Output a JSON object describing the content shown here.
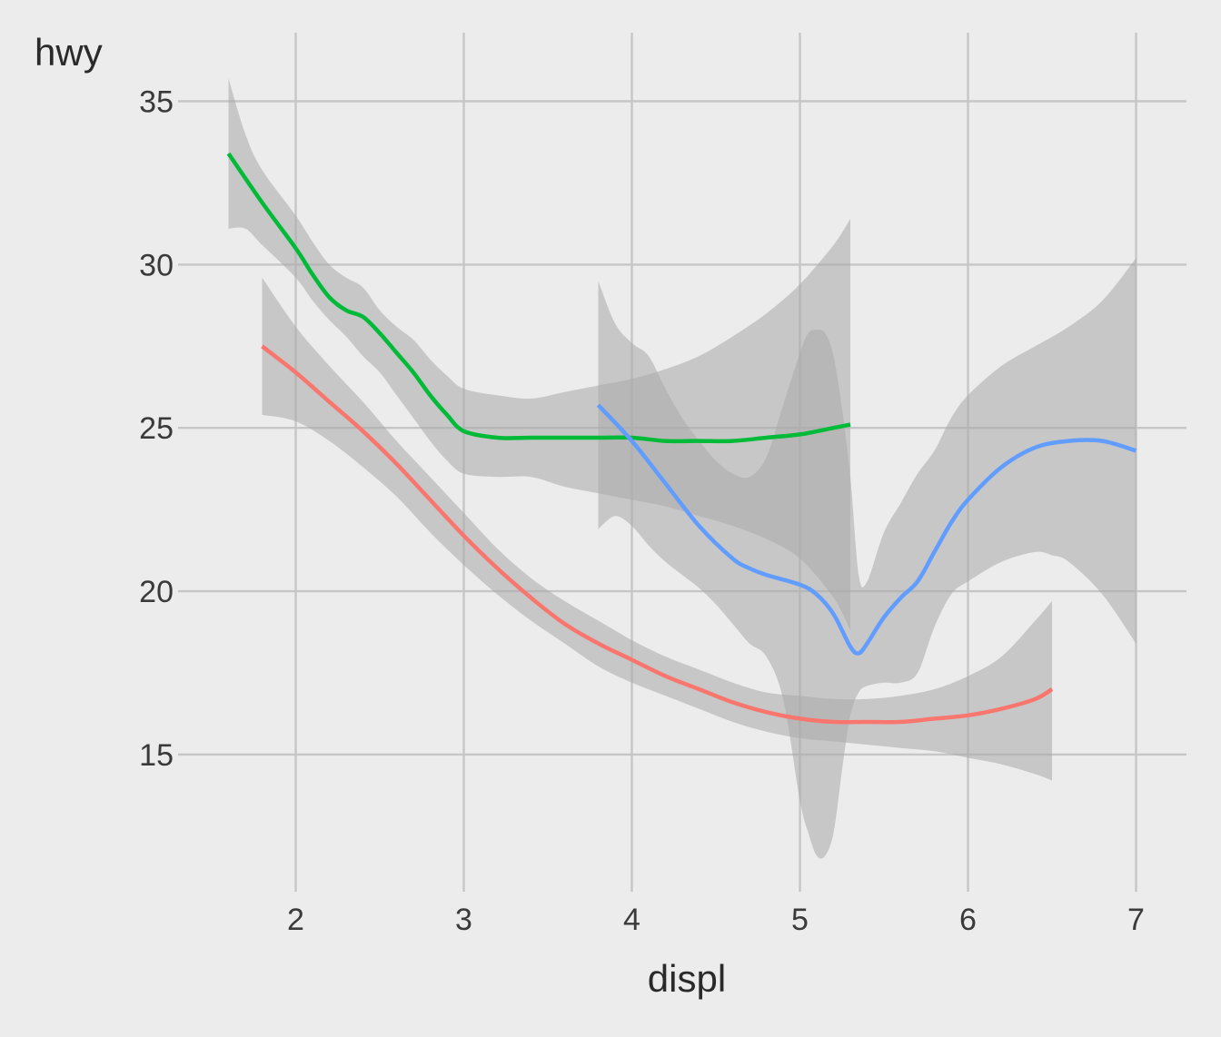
{
  "chart_data": {
    "type": "line",
    "xlabel": "displ",
    "ylabel": "hwy",
    "xlim": [
      1.3,
      7.3
    ],
    "ylim": [
      10.8,
      37.1
    ],
    "x_ticks": [
      2,
      3,
      4,
      5,
      6,
      7
    ],
    "y_ticks": [
      15,
      20,
      25,
      30,
      35
    ],
    "grid": true,
    "legend": "none",
    "series": [
      {
        "color": "#f8766d",
        "points": [
          [
            1.8,
            27.5
          ],
          [
            2.0,
            26.7
          ],
          [
            2.2,
            25.8
          ],
          [
            2.4,
            24.9
          ],
          [
            2.6,
            23.9
          ],
          [
            2.8,
            22.8
          ],
          [
            3.0,
            21.7
          ],
          [
            3.2,
            20.7
          ],
          [
            3.4,
            19.8
          ],
          [
            3.6,
            19.0
          ],
          [
            3.8,
            18.4
          ],
          [
            4.0,
            17.9
          ],
          [
            4.2,
            17.4
          ],
          [
            4.4,
            17.0
          ],
          [
            4.6,
            16.6
          ],
          [
            4.8,
            16.3
          ],
          [
            5.0,
            16.1
          ],
          [
            5.2,
            16.0
          ],
          [
            5.4,
            16.0
          ],
          [
            5.6,
            16.0
          ],
          [
            5.8,
            16.1
          ],
          [
            6.0,
            16.2
          ],
          [
            6.2,
            16.4
          ],
          [
            6.4,
            16.7
          ],
          [
            6.5,
            17.0
          ]
        ],
        "band_upper": [
          [
            1.8,
            29.6
          ],
          [
            2.0,
            28.1
          ],
          [
            2.2,
            26.9
          ],
          [
            2.4,
            25.8
          ],
          [
            2.6,
            24.6
          ],
          [
            2.8,
            23.5
          ],
          [
            3.0,
            22.4
          ],
          [
            3.2,
            21.3
          ],
          [
            3.4,
            20.4
          ],
          [
            3.6,
            19.7
          ],
          [
            3.8,
            19.1
          ],
          [
            4.0,
            18.5
          ],
          [
            4.2,
            18.0
          ],
          [
            4.4,
            17.6
          ],
          [
            4.6,
            17.2
          ],
          [
            4.8,
            16.9
          ],
          [
            5.0,
            16.8
          ],
          [
            5.2,
            16.7
          ],
          [
            5.4,
            16.7
          ],
          [
            5.6,
            16.8
          ],
          [
            5.8,
            17.0
          ],
          [
            6.0,
            17.4
          ],
          [
            6.2,
            18.0
          ],
          [
            6.4,
            19.1
          ],
          [
            6.5,
            19.7
          ]
        ],
        "band_lower": [
          [
            1.8,
            25.4
          ],
          [
            2.0,
            25.2
          ],
          [
            2.2,
            24.6
          ],
          [
            2.4,
            23.8
          ],
          [
            2.6,
            22.9
          ],
          [
            2.8,
            21.8
          ],
          [
            3.0,
            20.8
          ],
          [
            3.2,
            19.9
          ],
          [
            3.4,
            19.1
          ],
          [
            3.6,
            18.4
          ],
          [
            3.8,
            17.7
          ],
          [
            4.0,
            17.2
          ],
          [
            4.2,
            16.8
          ],
          [
            4.4,
            16.4
          ],
          [
            4.6,
            16.0
          ],
          [
            4.8,
            15.7
          ],
          [
            5.0,
            15.5
          ],
          [
            5.2,
            15.4
          ],
          [
            5.4,
            15.3
          ],
          [
            5.6,
            15.2
          ],
          [
            5.8,
            15.1
          ],
          [
            6.0,
            14.9
          ],
          [
            6.2,
            14.7
          ],
          [
            6.4,
            14.4
          ],
          [
            6.5,
            14.2
          ]
        ]
      },
      {
        "color": "#00ba38",
        "points": [
          [
            1.6,
            33.4
          ],
          [
            1.8,
            31.9
          ],
          [
            2.0,
            30.5
          ],
          [
            2.1,
            29.7
          ],
          [
            2.2,
            29.0
          ],
          [
            2.3,
            28.6
          ],
          [
            2.4,
            28.4
          ],
          [
            2.5,
            27.9
          ],
          [
            2.6,
            27.3
          ],
          [
            2.7,
            26.7
          ],
          [
            2.8,
            26.0
          ],
          [
            2.9,
            25.4
          ],
          [
            3.0,
            24.9
          ],
          [
            3.2,
            24.7
          ],
          [
            3.4,
            24.7
          ],
          [
            3.6,
            24.7
          ],
          [
            3.8,
            24.7
          ],
          [
            4.0,
            24.7
          ],
          [
            4.2,
            24.6
          ],
          [
            4.4,
            24.6
          ],
          [
            4.6,
            24.6
          ],
          [
            4.8,
            24.7
          ],
          [
            5.0,
            24.8
          ],
          [
            5.2,
            25.0
          ],
          [
            5.3,
            25.1
          ]
        ],
        "band_upper": [
          [
            1.6,
            35.7
          ],
          [
            1.7,
            34.0
          ],
          [
            1.8,
            32.9
          ],
          [
            2.0,
            31.5
          ],
          [
            2.1,
            30.7
          ],
          [
            2.2,
            30.0
          ],
          [
            2.3,
            29.6
          ],
          [
            2.4,
            29.3
          ],
          [
            2.5,
            28.6
          ],
          [
            2.6,
            28.1
          ],
          [
            2.7,
            27.7
          ],
          [
            2.8,
            27.1
          ],
          [
            2.9,
            26.6
          ],
          [
            3.0,
            26.2
          ],
          [
            3.2,
            26.0
          ],
          [
            3.4,
            25.9
          ],
          [
            3.6,
            26.1
          ],
          [
            3.8,
            26.3
          ],
          [
            4.0,
            26.5
          ],
          [
            4.2,
            26.8
          ],
          [
            4.4,
            27.2
          ],
          [
            4.6,
            27.8
          ],
          [
            4.8,
            28.5
          ],
          [
            5.0,
            29.4
          ],
          [
            5.2,
            30.6
          ],
          [
            5.3,
            31.4
          ]
        ],
        "band_lower": [
          [
            1.6,
            31.1
          ],
          [
            1.7,
            31.1
          ],
          [
            1.8,
            30.6
          ],
          [
            2.0,
            29.6
          ],
          [
            2.1,
            28.9
          ],
          [
            2.2,
            28.3
          ],
          [
            2.3,
            27.8
          ],
          [
            2.4,
            27.2
          ],
          [
            2.5,
            26.7
          ],
          [
            2.6,
            26.0
          ],
          [
            2.7,
            25.3
          ],
          [
            2.8,
            24.6
          ],
          [
            2.9,
            24.0
          ],
          [
            3.0,
            23.6
          ],
          [
            3.2,
            23.5
          ],
          [
            3.4,
            23.5
          ],
          [
            3.6,
            23.2
          ],
          [
            3.8,
            23.0
          ],
          [
            4.0,
            22.8
          ],
          [
            4.2,
            22.6
          ],
          [
            4.4,
            22.3
          ],
          [
            4.6,
            22.0
          ],
          [
            4.8,
            21.6
          ],
          [
            5.0,
            21.0
          ],
          [
            5.2,
            19.8
          ],
          [
            5.3,
            18.8
          ]
        ]
      },
      {
        "color": "#619cff",
        "points": [
          [
            3.8,
            25.7
          ],
          [
            4.0,
            24.6
          ],
          [
            4.2,
            23.3
          ],
          [
            4.4,
            22.0
          ],
          [
            4.6,
            21.0
          ],
          [
            4.7,
            20.7
          ],
          [
            4.8,
            20.5
          ],
          [
            5.0,
            20.2
          ],
          [
            5.1,
            19.9
          ],
          [
            5.2,
            19.3
          ],
          [
            5.3,
            18.3
          ],
          [
            5.35,
            18.1
          ],
          [
            5.4,
            18.4
          ],
          [
            5.5,
            19.2
          ],
          [
            5.6,
            19.8
          ],
          [
            5.7,
            20.3
          ],
          [
            5.8,
            21.2
          ],
          [
            5.9,
            22.1
          ],
          [
            6.0,
            22.8
          ],
          [
            6.2,
            23.8
          ],
          [
            6.4,
            24.4
          ],
          [
            6.6,
            24.6
          ],
          [
            6.8,
            24.6
          ],
          [
            7.0,
            24.3
          ]
        ],
        "band_upper": [
          [
            3.8,
            29.5
          ],
          [
            3.9,
            28.2
          ],
          [
            4.0,
            27.6
          ],
          [
            4.1,
            27.2
          ],
          [
            4.2,
            26.2
          ],
          [
            4.3,
            25.3
          ],
          [
            4.4,
            24.6
          ],
          [
            4.5,
            24.0
          ],
          [
            4.6,
            23.6
          ],
          [
            4.7,
            23.5
          ],
          [
            4.8,
            24.1
          ],
          [
            4.9,
            25.7
          ],
          [
            5.0,
            27.3
          ],
          [
            5.05,
            27.9
          ],
          [
            5.1,
            28.0
          ],
          [
            5.15,
            27.9
          ],
          [
            5.2,
            27.2
          ],
          [
            5.25,
            25.6
          ],
          [
            5.3,
            23.5
          ],
          [
            5.35,
            20.5
          ],
          [
            5.4,
            20.3
          ],
          [
            5.5,
            21.8
          ],
          [
            5.6,
            22.7
          ],
          [
            5.7,
            23.6
          ],
          [
            5.8,
            24.3
          ],
          [
            5.9,
            25.3
          ],
          [
            6.0,
            26.0
          ],
          [
            6.2,
            26.9
          ],
          [
            6.4,
            27.5
          ],
          [
            6.6,
            28.1
          ],
          [
            6.8,
            28.9
          ],
          [
            7.0,
            30.2
          ]
        ],
        "band_lower": [
          [
            3.8,
            21.9
          ],
          [
            3.9,
            22.3
          ],
          [
            4.0,
            22.0
          ],
          [
            4.1,
            21.4
          ],
          [
            4.2,
            20.9
          ],
          [
            4.3,
            20.5
          ],
          [
            4.4,
            20.1
          ],
          [
            4.5,
            19.6
          ],
          [
            4.6,
            19.0
          ],
          [
            4.7,
            18.4
          ],
          [
            4.8,
            18.0
          ],
          [
            4.9,
            16.7
          ],
          [
            5.0,
            13.6
          ],
          [
            5.05,
            12.6
          ],
          [
            5.1,
            11.9
          ],
          [
            5.15,
            11.9
          ],
          [
            5.2,
            12.6
          ],
          [
            5.25,
            14.5
          ],
          [
            5.3,
            16.2
          ],
          [
            5.35,
            16.9
          ],
          [
            5.4,
            17.1
          ],
          [
            5.5,
            17.2
          ],
          [
            5.6,
            17.2
          ],
          [
            5.7,
            17.5
          ],
          [
            5.8,
            18.9
          ],
          [
            5.9,
            19.9
          ],
          [
            6.0,
            20.3
          ],
          [
            6.2,
            20.9
          ],
          [
            6.4,
            21.2
          ],
          [
            6.5,
            21.1
          ],
          [
            6.6,
            20.9
          ],
          [
            6.8,
            19.9
          ],
          [
            7.0,
            18.4
          ]
        ]
      }
    ]
  }
}
